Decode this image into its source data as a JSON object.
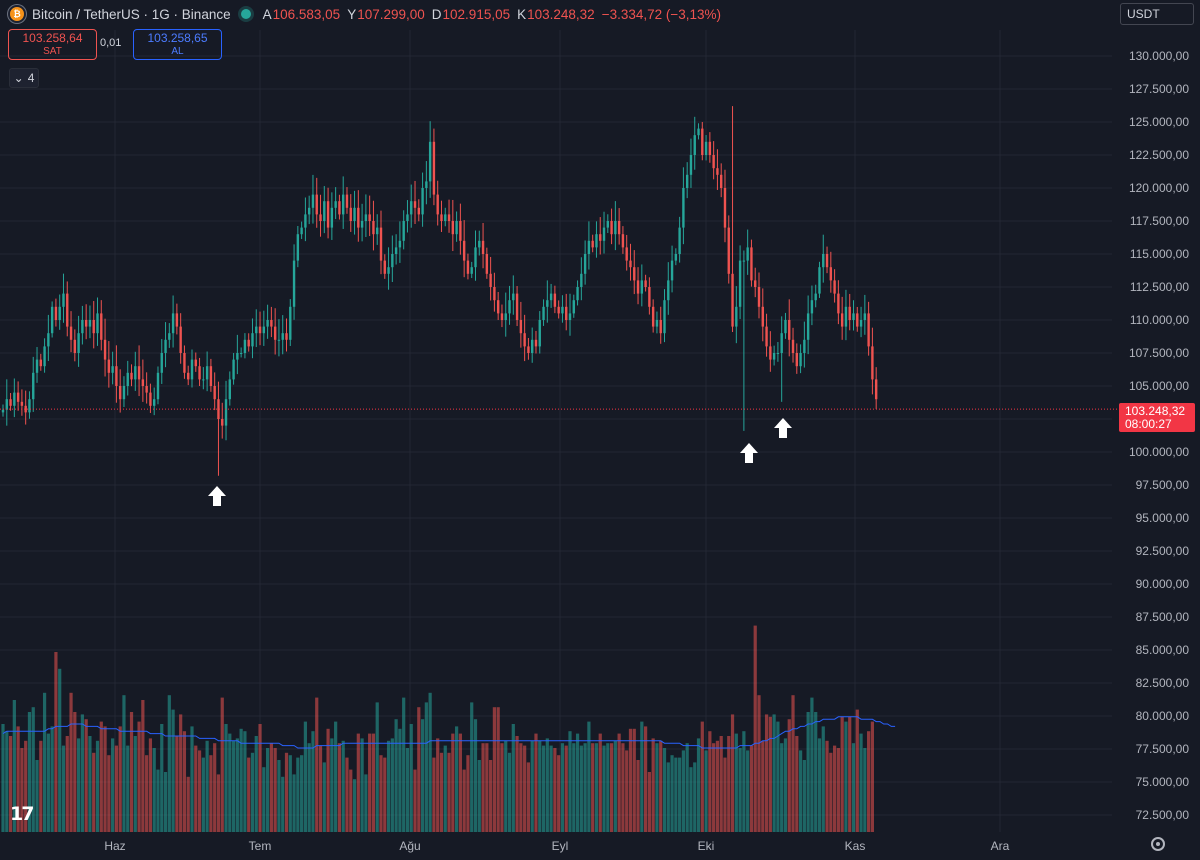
{
  "header": {
    "symbol": "Bitcoin / TetherUS · 1G · Binance",
    "ohlc": [
      {
        "label": "A",
        "value": "106.583,05"
      },
      {
        "label": "Y",
        "value": "107.299,00"
      },
      {
        "label": "D",
        "value": "102.915,05"
      },
      {
        "label": "K",
        "value": "103.248,32"
      }
    ],
    "change": "−3.334,72 (−3,13%)",
    "sell_price": "103.258,64",
    "sell_label": "SAT",
    "buy_price": "103.258,65",
    "buy_label": "AL",
    "spread": "0,01",
    "indicator_count": "4",
    "currency": "USDT"
  },
  "price_tag": {
    "price": "103.248,32",
    "countdown": "08:00:27"
  },
  "colors": {
    "up": "#26a69a",
    "down": "#ef5350",
    "background": "#161a25",
    "grid": "#232734",
    "volume_ma": "#2962ff"
  },
  "chart_data": {
    "type": "candlestick",
    "title": "Bitcoin / TetherUS · 1G · Binance",
    "y_axis_labels": [
      "130.000,00",
      "127.500,00",
      "125.000,00",
      "122.500,00",
      "120.000,00",
      "117.500,00",
      "115.000,00",
      "112.500,00",
      "110.000,00",
      "107.500,00",
      "105.000,00",
      "102.500,00",
      "100.000,00",
      "97.500,00",
      "95.000,00",
      "92.500,00",
      "90.000,00",
      "87.500,00",
      "85.000,00",
      "82.500,00",
      "80.000,00",
      "77.500,00",
      "75.000,00",
      "72.500,00"
    ],
    "ylim": [
      71000,
      132000
    ],
    "x_axis_labels": [
      "Haz",
      "Tem",
      "Ağu",
      "Eyl",
      "Eki",
      "Kas",
      "Ara"
    ],
    "last_price": 103248.32,
    "closes": [
      103200,
      104000,
      103500,
      104500,
      103800,
      103500,
      103000,
      104000,
      106000,
      107000,
      106500,
      108000,
      109000,
      111000,
      110000,
      111000,
      112000,
      109500,
      108500,
      107500,
      109000,
      110000,
      109500,
      110000,
      109000,
      110500,
      108500,
      107000,
      106000,
      106500,
      105000,
      104000,
      105000,
      106000,
      105500,
      106500,
      105500,
      105000,
      104500,
      103500,
      104000,
      106000,
      107500,
      108500,
      109000,
      110500,
      109500,
      107500,
      106000,
      105500,
      107000,
      106500,
      105500,
      105500,
      106500,
      105000,
      104000,
      102500,
      102000,
      104000,
      105500,
      107000,
      107500,
      107500,
      108500,
      108000,
      109000,
      109500,
      109000,
      109500,
      110000,
      109500,
      108500,
      108500,
      109000,
      108500,
      111000,
      114500,
      116500,
      117000,
      118000,
      118500,
      119500,
      118000,
      117500,
      119000,
      117000,
      118500,
      119000,
      118000,
      119500,
      118500,
      117500,
      118500,
      117000,
      117500,
      118000,
      117500,
      116500,
      117000,
      114500,
      113500,
      114000,
      115000,
      115500,
      116000,
      117500,
      118000,
      119000,
      118500,
      118000,
      120000,
      120500,
      123500,
      119500,
      118000,
      117500,
      118000,
      117500,
      116500,
      117500,
      116000,
      114500,
      113500,
      114000,
      115500,
      116000,
      115000,
      113500,
      112500,
      111500,
      110500,
      110000,
      110500,
      111500,
      112000,
      110000,
      109000,
      108000,
      107500,
      108500,
      108000,
      110000,
      111000,
      111500,
      112000,
      111000,
      110500,
      111000,
      110000,
      110500,
      111500,
      112500,
      113500,
      115000,
      116000,
      115500,
      116500,
      116000,
      117000,
      117500,
      116500,
      117500,
      116500,
      115500,
      114500,
      114000,
      113000,
      112000,
      113000,
      112500,
      111000,
      109500,
      110000,
      109000,
      111500,
      113000,
      114500,
      115000,
      117000,
      120000,
      121000,
      122500,
      124000,
      124500,
      122500,
      123500,
      122500,
      121500,
      121000,
      120000,
      117000,
      113500,
      109500,
      111000,
      114500,
      114500,
      115500,
      113000,
      112500,
      111000,
      109500,
      108000,
      107000,
      107500,
      107500,
      109000,
      110000,
      108500,
      107500,
      106500,
      107500,
      108500,
      110500,
      111500,
      112000,
      114000,
      115000,
      114000,
      113000,
      112000,
      110500,
      109500,
      111000,
      110000,
      110500,
      109500,
      110000,
      110500,
      108000,
      105500,
      104000
    ],
    "volume_ylim": [
      0,
      100
    ],
    "volumes": [
      45,
      42,
      40,
      55,
      44,
      35,
      38,
      50,
      52,
      30,
      38,
      58,
      41,
      44,
      75,
      68,
      36,
      40,
      58,
      50,
      39,
      49,
      47,
      40,
      33,
      38,
      46,
      44,
      32,
      39,
      36,
      44,
      57,
      36,
      50,
      40,
      46,
      55,
      32,
      39,
      35,
      26,
      45,
      25,
      57,
      51,
      40,
      49,
      42,
      23,
      44,
      36,
      34,
      31,
      38,
      32,
      37,
      24,
      56,
      45,
      41,
      38,
      39,
      43,
      42,
      31,
      33,
      40,
      45,
      27,
      35,
      37,
      35,
      30,
      23,
      33,
      32,
      24,
      31,
      32,
      46,
      37,
      42,
      56,
      36,
      29,
      43,
      39,
      46,
      37,
      38,
      31,
      26,
      22,
      41,
      39,
      24,
      41,
      41,
      54,
      32,
      31,
      38,
      39,
      47,
      43,
      56,
      35,
      45,
      26,
      52,
      47,
      54,
      58,
      31,
      39,
      33,
      36,
      33,
      41,
      44,
      41,
      26,
      32,
      54,
      47,
      30,
      37,
      37,
      30,
      52,
      52,
      37,
      38,
      33,
      45,
      40,
      37,
      36,
      29,
      38,
      41,
      38,
      36,
      39,
      36,
      35,
      32,
      37,
      36,
      42,
      37,
      41,
      36,
      37,
      46,
      37,
      37,
      41,
      36,
      37,
      37,
      38,
      41,
      37,
      34,
      43,
      43,
      30,
      46,
      44,
      25,
      39,
      37,
      38,
      35,
      29,
      32,
      31,
      31,
      34,
      37,
      27,
      29,
      39,
      46,
      34,
      42,
      37,
      38,
      40,
      31,
      40,
      49,
      41,
      35,
      42,
      34,
      36,
      86,
      57,
      38,
      49,
      48,
      49,
      46,
      37,
      39,
      47,
      57,
      40,
      34,
      30,
      50,
      56,
      50,
      39,
      44,
      38,
      33,
      36,
      35,
      48,
      46,
      48,
      37,
      51,
      41,
      35,
      42,
      46
    ],
    "volume_ma": [
      41,
      42,
      42,
      42,
      42,
      42,
      42,
      42,
      42,
      42,
      42,
      42,
      43,
      43,
      44,
      44,
      44,
      44,
      45,
      45,
      45,
      45,
      44,
      44,
      44,
      44,
      43,
      43,
      43,
      43,
      43,
      42,
      42,
      42,
      42,
      42,
      42,
      42,
      42,
      41,
      41,
      41,
      41,
      40,
      40,
      40,
      40,
      40,
      40,
      40,
      40,
      40,
      39,
      39,
      39,
      39,
      39,
      38,
      38,
      38,
      38,
      38,
      38,
      37,
      37,
      37,
      37,
      37,
      37,
      37,
      37,
      37,
      37,
      37,
      36,
      36,
      36,
      36,
      35,
      35,
      35,
      35,
      35,
      36,
      36,
      36,
      36,
      36,
      36,
      36,
      37,
      37,
      37,
      37,
      37,
      37,
      37,
      37,
      37,
      37,
      37,
      37,
      37,
      37,
      37,
      37,
      37,
      37,
      37,
      37,
      37,
      37,
      37,
      38,
      38,
      38,
      38,
      38,
      38,
      38,
      38,
      38,
      38,
      38,
      38,
      38,
      38,
      38,
      38,
      38,
      38,
      38,
      38,
      38,
      38,
      38,
      38,
      38,
      38,
      38,
      38,
      38,
      38,
      38,
      38,
      38,
      38,
      38,
      38,
      38,
      38,
      38,
      38,
      38,
      38,
      38,
      38,
      38,
      38,
      38,
      38,
      38,
      38,
      38,
      38,
      38,
      38,
      38,
      38,
      38,
      38,
      38,
      38,
      38,
      38,
      37,
      37,
      37,
      37,
      37,
      36,
      36,
      36,
      36,
      36,
      35,
      35,
      35,
      35,
      35,
      35,
      35,
      35,
      35,
      35,
      36,
      36,
      36,
      36,
      37,
      37,
      38,
      38,
      39,
      39,
      40,
      41,
      42,
      42,
      43,
      43,
      44,
      44,
      45,
      45,
      46,
      46,
      47,
      47,
      47,
      47,
      48,
      48,
      48,
      48,
      48,
      48,
      47,
      47,
      47,
      47,
      46,
      46,
      45,
      45,
      44,
      44
    ]
  }
}
